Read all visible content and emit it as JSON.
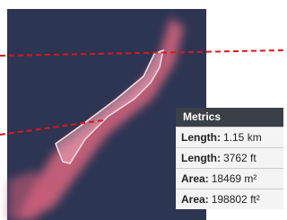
{
  "panel": {
    "title": "Metrics",
    "rows": [
      {
        "label": "Length:",
        "value": "1.15 km"
      },
      {
        "label": "Length:",
        "value": "3762 ft"
      },
      {
        "label": "Area:",
        "value": "18469 m²"
      },
      {
        "label": "Area:",
        "value": "198802 ft²"
      }
    ]
  }
}
